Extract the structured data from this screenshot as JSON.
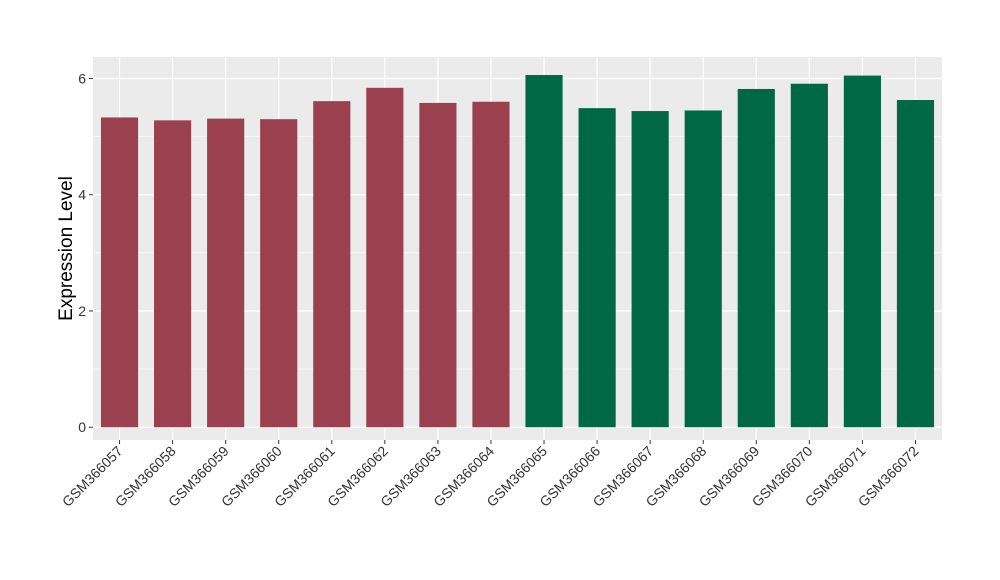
{
  "chart_data": {
    "type": "bar",
    "title": "",
    "xlabel": "",
    "ylabel": "Expression Level",
    "ylim": [
      -0.22,
      6.37
    ],
    "yticks": [
      0,
      2,
      4,
      6
    ],
    "grid": true,
    "legend": "none",
    "categories": [
      "GSM366057",
      "GSM366058",
      "GSM366059",
      "GSM366060",
      "GSM366061",
      "GSM366062",
      "GSM366063",
      "GSM366064",
      "GSM366065",
      "GSM366066",
      "GSM366067",
      "GSM366068",
      "GSM366069",
      "GSM366070",
      "GSM366071",
      "GSM366072"
    ],
    "values": [
      5.33,
      5.28,
      5.31,
      5.3,
      5.61,
      5.84,
      5.58,
      5.6,
      6.06,
      5.49,
      5.44,
      5.45,
      5.82,
      5.91,
      6.05,
      5.63
    ],
    "groups": [
      0,
      0,
      0,
      0,
      0,
      0,
      0,
      0,
      1,
      1,
      1,
      1,
      1,
      1,
      1,
      1
    ],
    "group_colors": [
      "#9a404f",
      "#006845"
    ],
    "panel_background": "#ebebeb",
    "grid_color": "#ffffff"
  }
}
